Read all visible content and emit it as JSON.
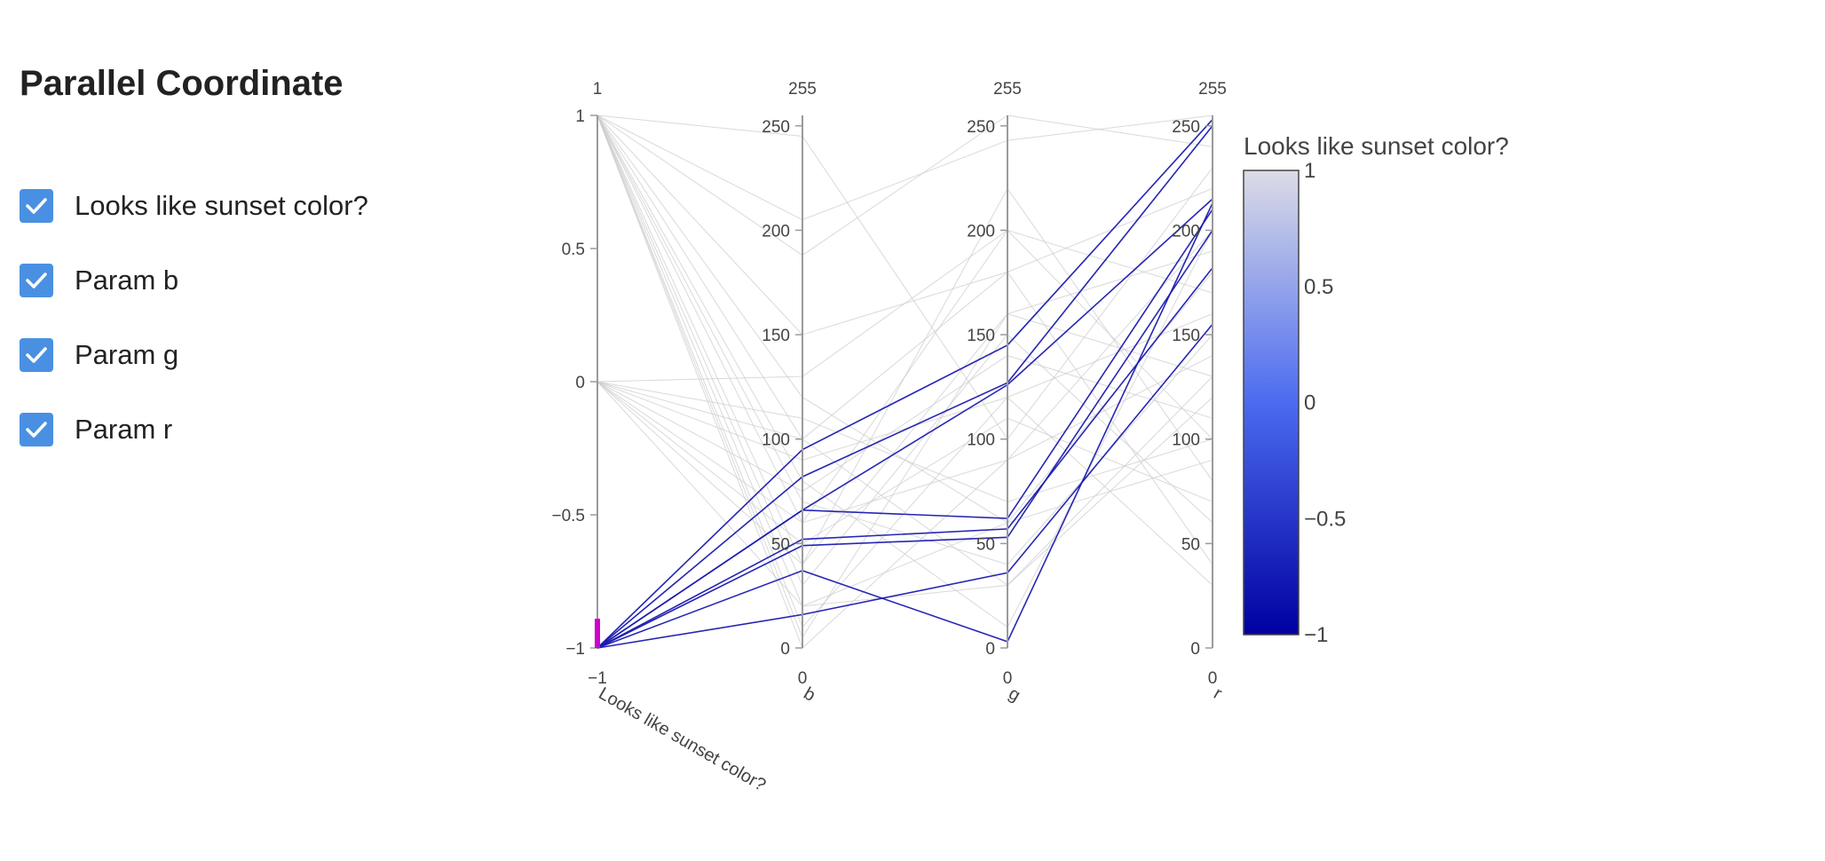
{
  "page": {
    "title": "Parallel Coordinate",
    "checklist": [
      {
        "label": "Looks like sunset color?",
        "checked": true
      },
      {
        "label": "Param b",
        "checked": true
      },
      {
        "label": "Param g",
        "checked": true
      },
      {
        "label": "Param r",
        "checked": true
      }
    ],
    "checkbox_color": "#4a90e2"
  },
  "chart_data": {
    "type": "parcoords",
    "dimensions": [
      {
        "label": "Looks like sunset color?",
        "range": [
          -1,
          1
        ],
        "ticks": [
          -1,
          -0.5,
          0,
          0.5,
          1
        ],
        "tick_labels": [
          "−1",
          "−0.5",
          "0",
          "0.5",
          "1"
        ],
        "min_label": "−1",
        "max_label": "1",
        "constraint_range": [
          -1,
          -0.89
        ]
      },
      {
        "label": "b",
        "range": [
          0,
          255
        ],
        "ticks": [
          0,
          50,
          100,
          150,
          200,
          250
        ],
        "tick_labels": [
          "0",
          "50",
          "100",
          "150",
          "200",
          "250"
        ],
        "min_label": "0",
        "max_label": "255"
      },
      {
        "label": "g",
        "range": [
          0,
          255
        ],
        "ticks": [
          0,
          50,
          100,
          150,
          200,
          250
        ],
        "tick_labels": [
          "0",
          "50",
          "100",
          "150",
          "200",
          "250"
        ],
        "min_label": "0",
        "max_label": "255"
      },
      {
        "label": "r",
        "range": [
          0,
          255
        ],
        "ticks": [
          0,
          50,
          100,
          150,
          200,
          250
        ],
        "tick_labels": [
          "0",
          "50",
          "100",
          "150",
          "200",
          "250"
        ],
        "min_label": "0",
        "max_label": "255"
      }
    ],
    "lines": [
      [
        -1,
        95,
        145,
        253
      ],
      [
        -1,
        82,
        127,
        250
      ],
      [
        -1,
        66,
        62,
        210
      ],
      [
        -1,
        49,
        53,
        200
      ],
      [
        -1,
        52,
        57,
        182
      ],
      [
        -1,
        37,
        3,
        213
      ],
      [
        -1,
        16,
        36,
        155
      ],
      [
        -1,
        66,
        126,
        215
      ],
      [
        1,
        205,
        243,
        255
      ],
      [
        1,
        188,
        255,
        240
      ],
      [
        1,
        150,
        180,
        220
      ],
      [
        1,
        60,
        200,
        100
      ],
      [
        1,
        30,
        150,
        60
      ],
      [
        1,
        10,
        120,
        30
      ],
      [
        1,
        0,
        90,
        140
      ],
      [
        1,
        40,
        220,
        80
      ],
      [
        1,
        120,
        60,
        180
      ],
      [
        1,
        20,
        30,
        120
      ],
      [
        1,
        80,
        10,
        200
      ],
      [
        1,
        245,
        100,
        230
      ],
      [
        1,
        100,
        180,
        40
      ],
      [
        1,
        5,
        160,
        190
      ],
      [
        1,
        70,
        40,
        150
      ],
      [
        0,
        110,
        70,
        100
      ],
      [
        0,
        90,
        120,
        160
      ],
      [
        0,
        60,
        90,
        200
      ],
      [
        0,
        40,
        160,
        130
      ],
      [
        0,
        20,
        60,
        90
      ],
      [
        0,
        130,
        200,
        170
      ],
      [
        0,
        75,
        140,
        110
      ],
      [
        0,
        50,
        110,
        70
      ],
      [
        0,
        100,
        30,
        130
      ]
    ],
    "color_dimension": "Looks like sunset color?",
    "colorbar": {
      "title": "Looks like sunset color?",
      "range": [
        -1,
        1
      ],
      "ticks": [
        -1,
        -0.5,
        0,
        0.5,
        1
      ],
      "tick_labels": [
        "−1",
        "−0.5",
        "0",
        "0.5",
        "1"
      ],
      "colors": [
        "#0000a0",
        "#4b6bf0",
        "#dcdce6"
      ]
    },
    "unselected_color": "#cccccc",
    "brush_color": "#cc00cc"
  }
}
